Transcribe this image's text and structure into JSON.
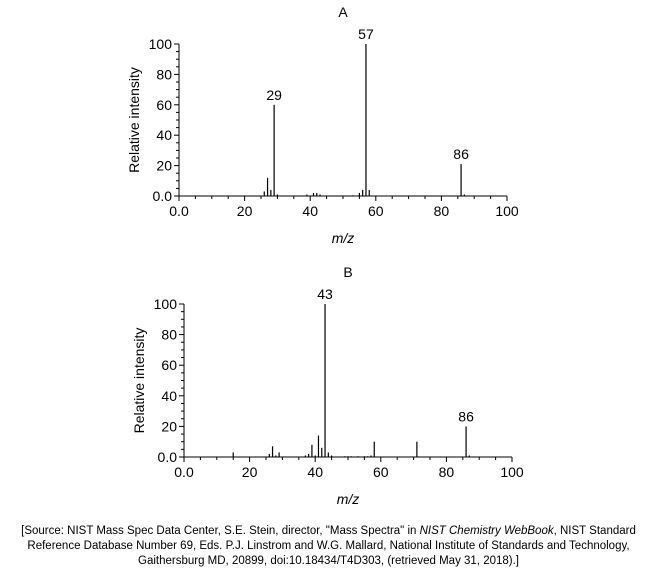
{
  "chart_data": [
    {
      "type": "bar",
      "title": "A",
      "xlabel": "m/z",
      "ylabel": "Relative intensity",
      "xlim": [
        0,
        100
      ],
      "ylim": [
        0,
        100
      ],
      "xticks": [
        "0.0",
        "20",
        "40",
        "60",
        "80",
        "100"
      ],
      "yticks": [
        "0.0",
        "20",
        "40",
        "60",
        "80",
        "100"
      ],
      "x": [
        26,
        27,
        28,
        29,
        30,
        39,
        41,
        42,
        43,
        53,
        55,
        56,
        57,
        58,
        86,
        87
      ],
      "values": [
        3,
        12,
        4,
        60,
        1,
        1,
        2,
        2,
        1,
        0.5,
        2,
        4,
        100,
        4,
        21,
        1
      ],
      "labels": [
        {
          "x": 29,
          "text": "29"
        },
        {
          "x": 57,
          "text": "57"
        },
        {
          "x": 86,
          "text": "86"
        }
      ]
    },
    {
      "type": "bar",
      "title": "B",
      "xlabel": "m/z",
      "ylabel": "Relative intensity",
      "xlim": [
        0,
        100
      ],
      "ylim": [
        0,
        100
      ],
      "xticks": [
        "0.0",
        "20",
        "40",
        "60",
        "80",
        "100"
      ],
      "yticks": [
        "0.0",
        "20",
        "40",
        "60",
        "80",
        "100"
      ],
      "x": [
        15,
        26,
        27,
        28,
        29,
        37,
        38,
        39,
        40,
        41,
        42,
        43,
        44,
        45,
        49,
        50,
        51,
        53,
        55,
        56,
        57,
        58,
        71,
        86,
        87
      ],
      "values": [
        3,
        2,
        7,
        1,
        3,
        1,
        2,
        8,
        1,
        14,
        6,
        100,
        3,
        1,
        0.5,
        0.5,
        0.5,
        0.5,
        0.5,
        0.5,
        1,
        10,
        10,
        20,
        1
      ],
      "labels": [
        {
          "x": 43,
          "text": "43"
        },
        {
          "x": 86,
          "text": "86"
        }
      ]
    }
  ],
  "source": {
    "line1_pre": "[Source: NIST Mass Spec Data Center, S.E. Stein, director, \"Mass Spectra\" in ",
    "line1_italic": "NIST Chemistry WebBook",
    "line1_post": ", NIST Standard",
    "line2": "Reference Database Number 69, Eds. P.J. Linstrom and W.G. Mallard, National Institute of Standards and Technology,",
    "line3": "Gaithersburg MD, 20899, doi:10.18434/T4D303, (retrieved May 31, 2018).]"
  }
}
